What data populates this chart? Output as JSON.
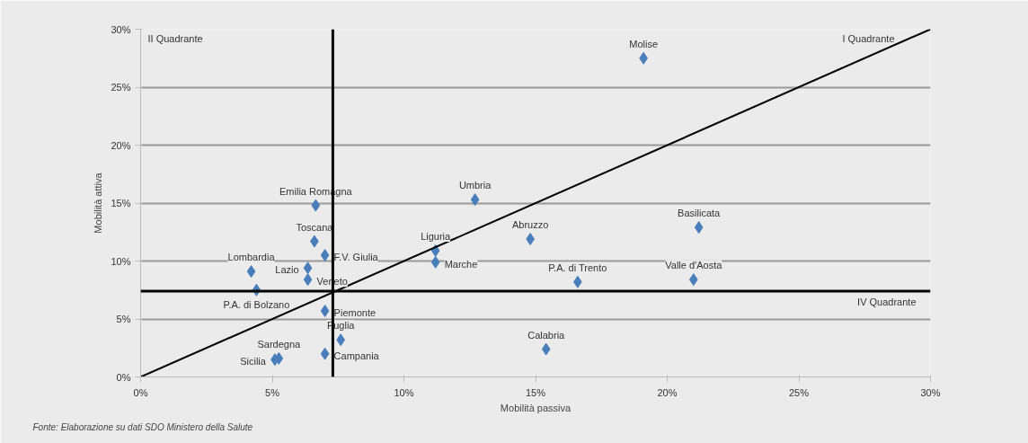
{
  "chart_data": {
    "type": "scatter",
    "xlabel": "Mobilità passiva",
    "ylabel": "Mobilità attiva",
    "xlim": [
      0,
      30
    ],
    "ylim": [
      0,
      30
    ],
    "xticks": [
      {
        "value": 0,
        "label": "0%"
      },
      {
        "value": 5,
        "label": "5%"
      },
      {
        "value": 10,
        "label": "10%"
      },
      {
        "value": 15,
        "label": "15%"
      },
      {
        "value": 20,
        "label": "20%"
      },
      {
        "value": 25,
        "label": "25%"
      },
      {
        "value": 30,
        "label": "30%"
      }
    ],
    "yticks": [
      {
        "value": 0,
        "label": "0%"
      },
      {
        "value": 5,
        "label": "5%"
      },
      {
        "value": 10,
        "label": "10%"
      },
      {
        "value": 15,
        "label": "15%"
      },
      {
        "value": 20,
        "label": "20%"
      },
      {
        "value": 25,
        "label": "25%"
      },
      {
        "value": 30,
        "label": "30%"
      }
    ],
    "grid": "y",
    "series": [
      {
        "marker": "diamond",
        "color": "#4a7ebb",
        "x": [
          19.1,
          12.7,
          6.65,
          21.2,
          14.8,
          6.6,
          11.2,
          7.0,
          11.2,
          4.2,
          6.35,
          6.35,
          16.6,
          21.0,
          4.4,
          7.0,
          7.6,
          15.4,
          7.0,
          5.25,
          5.1
        ],
        "values": [
          27.5,
          15.3,
          14.8,
          12.9,
          11.9,
          11.7,
          10.9,
          10.5,
          9.9,
          9.1,
          9.4,
          8.4,
          8.2,
          8.4,
          7.5,
          5.7,
          3.2,
          2.4,
          2.0,
          1.6,
          1.5
        ],
        "value_labels": [
          "Molise",
          "Umbria",
          "Emilia Romagna",
          "Basilicata",
          "Abruzzo",
          "Toscana",
          "Liguria",
          "F.V. Giulia",
          "Marche",
          "Lombardia",
          "Lazio",
          "Veneto",
          "P.A. di Trento",
          "Valle d'Aosta",
          "P.A. di Bolzano",
          "Piemonte",
          "Puglia",
          "Calabria",
          "Campania",
          "Sardegna",
          "Sicilia"
        ]
      },
      {
        "type": "line",
        "color": "#000000",
        "line_style": "solid",
        "x": [
          0,
          30
        ],
        "values": [
          0,
          30
        ]
      }
    ],
    "ref_lines": [
      {
        "axis": "x",
        "value": 7.3,
        "color": "#000000"
      },
      {
        "axis": "y",
        "value": 7.4,
        "color": "#000000"
      }
    ],
    "annotations": [
      "II Quadrante",
      "I Quadrante",
      "IV Quadrante",
      "Fonte: Elaborazione su dati SDO Ministero della Salute"
    ]
  }
}
